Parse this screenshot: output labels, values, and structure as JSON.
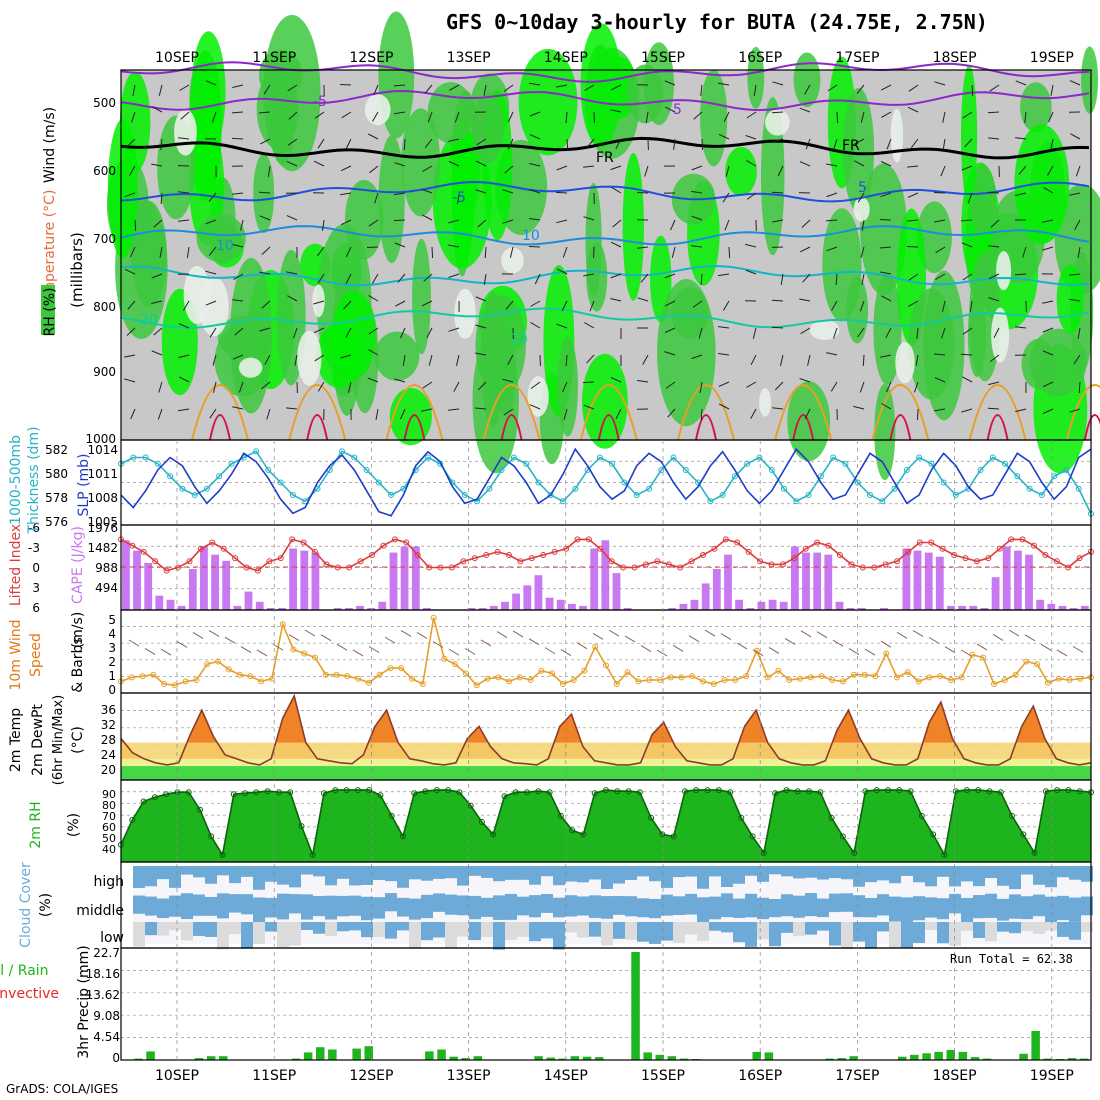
{
  "title": "GFS 0~10day 3-hourly for BUTA (24.75E, 2.75N)",
  "credit": "GrADS: COLA/IGES",
  "run_total": "Run Total = 62.38",
  "date_labels": [
    "10SEP",
    "11SEP",
    "12SEP",
    "13SEP",
    "14SEP",
    "15SEP",
    "16SEP",
    "17SEP",
    "18SEP",
    "19SEP"
  ],
  "colors": {
    "rh_green": "#3cc83c",
    "rh_bright": "#00f000",
    "rh_gray": "#c8c8c8",
    "slp_line": "#1e3cc8",
    "thickness_line": "#28b4c8",
    "cape_bar": "#c878f0",
    "lifted_index": "#dc3c3c",
    "wind_speed": "#e6a028",
    "temp_fill_orange": "#f08228",
    "rh2m_fill": "#1eb41e",
    "cloud_blue": "#6eaad7",
    "cloud_gray": "#dcdcdc",
    "precip_total": "#1eb41e",
    "precip_conv": "#e62828"
  },
  "panels": {
    "upper_air": {
      "left_labels": [
        "Wind (m/s)",
        "Temperature (°C)",
        "RH (%)",
        "(millibars)"
      ],
      "y_ticks": [
        "500",
        "600",
        "700",
        "800",
        "900",
        "1000"
      ],
      "contour_labels": [
        "-5",
        "-5",
        "FR",
        "FR",
        "-5",
        "5",
        "10",
        "10",
        "20",
        "20"
      ]
    },
    "slp": {
      "left_labels": [
        "1000-500mb",
        "Thickness (dm)",
        "SLP (mb)"
      ],
      "left_ticks": [
        "582",
        "580",
        "578",
        "576"
      ],
      "right_ticks": [
        "1014",
        "1011",
        "1008",
        "1005"
      ]
    },
    "cape": {
      "left_labels": [
        "Lifted Index",
        "CAPE (J/kg)"
      ],
      "li_ticks": [
        "-6",
        "-3",
        "0",
        "3",
        "6"
      ],
      "cape_ticks": [
        "1976",
        "1482",
        "988",
        "494"
      ]
    },
    "wind10": {
      "left_labels": [
        "10m Wind",
        "Speed",
        "& Barbs",
        "(m/s)"
      ],
      "ticks": [
        "5",
        "4",
        "3",
        "2",
        "1",
        "0"
      ]
    },
    "temp": {
      "left_labels": [
        "2m Temp",
        "2m DewPt",
        "(6hr Min/Max)",
        "(°C)"
      ],
      "ticks": [
        "36",
        "32",
        "28",
        "24",
        "20"
      ]
    },
    "rh2m": {
      "left_labels": [
        "2m RH",
        "(%)"
      ],
      "ticks": [
        "90",
        "80",
        "70",
        "60",
        "50",
        "40"
      ]
    },
    "cloud": {
      "left_labels": [
        "Cloud Cover",
        "(%)"
      ],
      "levels": [
        "high",
        "middle",
        "low"
      ]
    },
    "precip": {
      "left_labels": [
        "Total / Rain",
        "Convective",
        "3hr Precip (mm)"
      ],
      "ticks": [
        "22.7",
        "18.16",
        "13.62",
        "9.08",
        "4.54",
        "0"
      ]
    }
  },
  "chart_data": [
    {
      "type": "line",
      "name": "SLP",
      "x_unit": "3-hourly steps from 10SEP",
      "y": [
        1008,
        1006.5,
        1008.5,
        1011,
        1012.5,
        1011.5,
        1009,
        1007,
        1008.5,
        1010.5,
        1013,
        1012,
        1010,
        1007.5,
        1005.8,
        1006.5,
        1009.5,
        1011.5,
        1012.8,
        1011,
        1008.5,
        1006,
        1005.5,
        1008,
        1011.5,
        1013.2,
        1012,
        1009,
        1007,
        1007.5,
        1010,
        1012.5,
        1011.5,
        1009.5,
        1007,
        1008,
        1010.5,
        1013.5,
        1011.5,
        1009,
        1007.5,
        1008.5,
        1011.5,
        1013,
        1012,
        1009.5,
        1007.5,
        1009,
        1011.5,
        1013.2,
        1011,
        1008.5,
        1007,
        1008.5,
        1011,
        1013.5,
        1012,
        1009.5,
        1007.5,
        1008,
        1010.5,
        1013,
        1012,
        1009.5,
        1007,
        1008,
        1011,
        1013,
        1011.5,
        1009,
        1007.5,
        1008,
        1010.5,
        1013,
        1012,
        1009.5,
        1007.5,
        1009,
        1012.5,
        1013.5
      ],
      "ylim": [
        1005,
        1014
      ]
    },
    {
      "type": "line",
      "name": "1000-500mb Thickness",
      "y": [
        580.5,
        581,
        581,
        580.5,
        579.5,
        578.5,
        578,
        578.5,
        579.5,
        580.5,
        581,
        581.5,
        580,
        579,
        578,
        577.5,
        578.5,
        580,
        581.5,
        581,
        580,
        579,
        578,
        578.5,
        580,
        581,
        580.5,
        579,
        578,
        577.5,
        578.5,
        580,
        581,
        580.5,
        579,
        578,
        577.5,
        578.5,
        580,
        581,
        580.5,
        579,
        578,
        578.5,
        580,
        581,
        580,
        579,
        577.5,
        578,
        579.5,
        580.5,
        581,
        580,
        578.5,
        577.5,
        578,
        579.5,
        581,
        580.5,
        579,
        578,
        577.5,
        578.5,
        580,
        581,
        580.5,
        579,
        578,
        578.5,
        580,
        581,
        580.5,
        579.5,
        578.5,
        578,
        579.5,
        580,
        578.5,
        576.5
      ],
      "ylim": [
        576,
        582
      ]
    },
    {
      "type": "bar",
      "name": "CAPE",
      "values": [
        1700,
        1450,
        1150,
        350,
        250,
        100,
        1000,
        1550,
        1350,
        1200,
        100,
        450,
        200,
        50,
        50,
        1500,
        1450,
        1400,
        0,
        50,
        50,
        100,
        50,
        200,
        1400,
        1550,
        1550,
        50,
        0,
        0,
        0,
        50,
        50,
        100,
        200,
        400,
        600,
        850,
        300,
        250,
        150,
        100,
        1500,
        1700,
        900,
        50,
        0,
        0,
        0,
        50,
        150,
        250,
        650,
        1000,
        1350,
        250,
        50,
        200,
        250,
        200,
        1550,
        1400,
        1400,
        1350,
        200,
        50,
        50,
        0,
        50,
        0,
        1500,
        1450,
        1400,
        1300,
        100,
        100,
        100,
        50,
        800,
        1550,
        1450,
        1350,
        250,
        150,
        100,
        50,
        100
      ],
      "ylim": [
        0,
        1976
      ]
    },
    {
      "type": "line",
      "name": "Lifted Index",
      "y": [
        -4.5,
        -3.5,
        -2.5,
        -1,
        0.5,
        0,
        -1,
        -3,
        -4,
        -3,
        -1.5,
        0,
        0.5,
        -1,
        -1.5,
        -4.5,
        -4,
        -2.5,
        -0.5,
        0,
        0,
        -1,
        -2,
        -3.5,
        -4.5,
        -4,
        -2,
        0,
        0,
        0,
        -1,
        -1.5,
        -2,
        -2.5,
        -2,
        -1,
        -1.5,
        -2,
        -2.5,
        -3,
        -4.5,
        -4.5,
        -3,
        -1,
        0,
        0,
        -0.5,
        -1,
        -0.5,
        0,
        -1,
        -2,
        -3,
        -4.5,
        -4,
        -2.5,
        -1,
        -0.5,
        -0.5,
        -1.5,
        -3,
        -4,
        -3.5,
        -2,
        -0.5,
        0,
        0,
        -0.5,
        -1,
        -2.5,
        -4,
        -4,
        -3,
        -2,
        -1.5,
        -1,
        -1.5,
        -3,
        -4.5,
        -4.5,
        -3.5,
        -2,
        -1,
        0,
        -1.5,
        -2.5
      ],
      "ylim": [
        6,
        -6
      ]
    },
    {
      "type": "line",
      "name": "10m Wind Speed",
      "y": [
        0.5,
        0.8,
        0.9,
        1.0,
        0.3,
        0.2,
        0.5,
        0.6,
        1.8,
        2.0,
        1.4,
        1.0,
        0.9,
        0.5,
        0.7,
        4.8,
        2.9,
        2.6,
        2.3,
        1.0,
        1.0,
        0.9,
        0.7,
        0.4,
        1.0,
        1.5,
        1.5,
        0.7,
        0.3,
        5.3,
        2.2,
        1.8,
        1.1,
        0.2,
        0.7,
        0.8,
        0.5,
        0.8,
        0.6,
        1.3,
        1.1,
        0.3,
        0.6,
        1.3,
        3.1,
        1.7,
        0.3,
        1.2,
        0.5,
        0.6,
        0.6,
        0.8,
        0.8,
        0.9,
        0.5,
        0.3,
        0.6,
        0.6,
        0.9,
        2.8,
        0.8,
        1.3,
        0.6,
        0.7,
        0.8,
        0.9,
        0.6,
        0.5,
        1.0,
        1.0,
        0.9,
        2.6,
        0.8,
        1.2,
        0.5,
        0.8,
        0.9,
        0.6,
        0.8,
        2.5,
        2.3,
        0.3,
        0.6,
        1.0,
        2.0,
        1.8,
        0.4,
        0.7,
        0.6,
        0.7,
        0.8
      ],
      "ylim": [
        0,
        5.5
      ]
    },
    {
      "type": "area",
      "name": "2m Temp",
      "y": [
        27,
        23.5,
        22,
        21,
        20.5,
        21,
        28,
        34,
        27.5,
        23,
        22,
        21,
        20.5,
        22,
        32,
        37.5,
        26,
        22,
        21.5,
        21,
        20.8,
        23,
        30,
        34,
        26,
        22,
        21.5,
        20.8,
        20.5,
        21,
        27,
        30,
        25,
        22,
        21,
        20.8,
        20.5,
        22,
        30,
        33,
        25,
        21.5,
        21,
        20.5,
        20.5,
        21,
        28,
        31,
        25,
        21.5,
        21,
        20.5,
        20.5,
        22,
        30,
        34,
        26,
        22,
        21,
        20.5,
        20.5,
        21.5,
        29,
        34,
        27,
        22,
        21,
        20.5,
        20.5,
        22,
        31,
        36,
        27,
        22,
        21,
        20.5,
        20.5,
        22,
        30,
        35,
        27,
        22,
        21,
        20.5,
        21
      ],
      "ylim": [
        18,
        37
      ]
    },
    {
      "type": "area",
      "name": "2m RH",
      "y": [
        42,
        66,
        84,
        88,
        91,
        93,
        93,
        76,
        50,
        32,
        91,
        92,
        93,
        94,
        93,
        93,
        60,
        32,
        92,
        95,
        95,
        95,
        95,
        90,
        70,
        50,
        92,
        94,
        95,
        95,
        93,
        80,
        64,
        52,
        89,
        93,
        93,
        94,
        93,
        70,
        56,
        52,
        92,
        95,
        94,
        94,
        93,
        68,
        52,
        50,
        94,
        95,
        95,
        95,
        93,
        68,
        50,
        34,
        92,
        95,
        94,
        94,
        93,
        68,
        50,
        34,
        94,
        95,
        95,
        95,
        94,
        70,
        52,
        32,
        94,
        95,
        95,
        94,
        93,
        70,
        52,
        34,
        94,
        95,
        95,
        94,
        93
      ],
      "ylim": [
        30,
        100
      ]
    },
    {
      "type": "bar",
      "name": "3hr Precip total",
      "values": [
        0.1,
        0.3,
        1.8,
        0,
        0,
        0,
        0.4,
        0.8,
        0.8,
        0.1,
        0,
        0,
        0,
        0,
        0.3,
        1.6,
        2.7,
        2.2,
        0.1,
        2.4,
        2.9,
        0,
        0,
        0,
        0.1,
        1.8,
        2.2,
        0.7,
        0.4,
        0.8,
        0,
        0,
        0,
        0,
        0.8,
        0.5,
        0.3,
        0.8,
        0.7,
        0.6,
        0,
        0,
        22.7,
        1.6,
        1.1,
        0.8,
        0.3,
        0.2,
        0.1,
        0,
        0,
        0,
        1.7,
        1.6,
        0,
        0,
        0,
        0,
        0.3,
        0.4,
        0.8,
        0,
        0,
        0,
        0.7,
        1.1,
        1.4,
        1.7,
        2.1,
        1.7,
        0.6,
        0.3,
        0,
        0,
        1.3,
        6.1,
        0.3,
        0.2,
        0.4,
        0.3
      ]
    }
  ]
}
